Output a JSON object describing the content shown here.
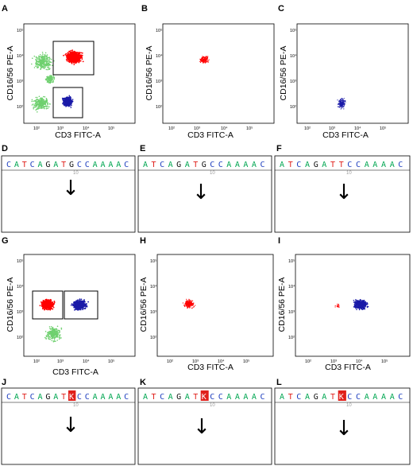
{
  "panels": {
    "flow": [
      {
        "id": "A",
        "label": "A",
        "xlabel": "CD3 FITC-A",
        "ylabel": "CD16/56 PE-A",
        "xticks": [
          "10²",
          "10³",
          "10⁴",
          "10⁵"
        ],
        "yticks": [
          "10⁵",
          "10⁴",
          "10³",
          "10²"
        ]
      },
      {
        "id": "B",
        "label": "B",
        "xlabel": "CD3 FITC-A",
        "ylabel": "CD16/56 PE-A",
        "xticks": [
          "10²",
          "10³",
          "10⁴",
          "10⁵"
        ],
        "yticks": [
          "10⁵",
          "10⁴",
          "10³",
          "10²"
        ]
      },
      {
        "id": "C",
        "label": "C",
        "xlabel": "CD3 FITC-A",
        "ylabel": "CD16/56 PE-A",
        "xticks": [
          "10²",
          "10³",
          "10⁴",
          "10⁵"
        ],
        "yticks": [
          "10⁵",
          "10⁴",
          "10³",
          "10²"
        ]
      },
      {
        "id": "G",
        "label": "G",
        "xlabel": "CD3 FITC-A",
        "ylabel": "CD16/56 PE-A",
        "xticks": [
          "10²",
          "10³",
          "10⁴",
          "10⁵"
        ],
        "yticks": [
          "10⁵",
          "10⁴",
          "10³",
          "10²"
        ]
      },
      {
        "id": "H",
        "label": "H",
        "xlabel": "CD3 FITC-A",
        "ylabel": "CD16/56 PE-A",
        "xticks": [
          "10²",
          "10³",
          "10⁴",
          "10⁵"
        ],
        "yticks": [
          "10⁵",
          "10⁴",
          "10³",
          "10²"
        ]
      },
      {
        "id": "I",
        "label": "I",
        "xlabel": "CD3 FITC-A",
        "ylabel": "CD16/56 PE-A",
        "xticks": [
          "10²",
          "10³",
          "10⁴",
          "10⁵"
        ],
        "yticks": [
          "10⁵",
          "10⁴",
          "10³",
          "10²"
        ]
      }
    ],
    "seq": [
      {
        "id": "D",
        "label": "D",
        "bases": "CATCAGATGCCAAAAC",
        "pos_label": "10",
        "highlight": null
      },
      {
        "id": "E",
        "label": "E",
        "bases": "ATCAGATGCCAAAAC",
        "pos_label": "10",
        "highlight": null
      },
      {
        "id": "F",
        "label": "F",
        "bases": "ATCAGATTCCAAAAC",
        "pos_label": "10",
        "highlight": null
      },
      {
        "id": "J",
        "label": "J",
        "bases": "CATCAGATKCCAAAAC",
        "pos_label": "10",
        "highlight": 8
      },
      {
        "id": "K",
        "label": "K",
        "bases": "ATCAGATKCCAAAAC",
        "pos_label": "10",
        "highlight": 7
      },
      {
        "id": "L",
        "label": "L",
        "bases": "ATCAGATKCCAAAAC",
        "pos_label": "10",
        "highlight": 7
      }
    ]
  },
  "colors": {
    "A": "#00a651",
    "C": "#1f3fbf",
    "G": "#111111",
    "T": "#e0201b",
    "K": "#e0201b",
    "nk_population": "#ff0000",
    "t_population": "#1a1aa8",
    "other_events": "#6fd06f",
    "highlight_box": "#e0201b",
    "highlight_text": "#ffffff"
  },
  "arrow_glyph": "↓"
}
